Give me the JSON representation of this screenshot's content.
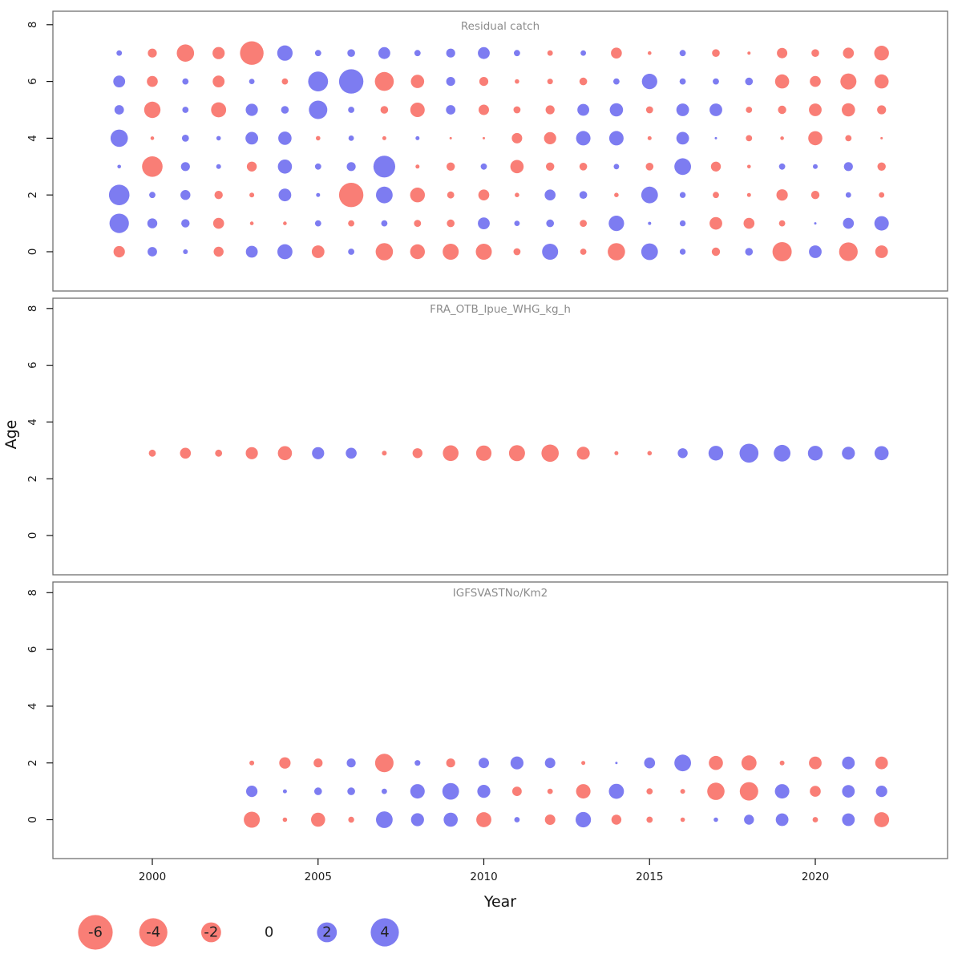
{
  "figure": {
    "xlabel": "Year",
    "ylabel": "Age",
    "x_ticks": [
      2000,
      2005,
      2010,
      2015,
      2020
    ],
    "y_ticks": [
      0,
      2,
      4,
      6,
      8
    ],
    "colors": {
      "negative_bubble": "#f97e76",
      "positive_bubble": "#7d7cf1",
      "frame": "#6f6f6f",
      "panel_title": "#8c8c8c",
      "tick_text": "#1a1a1a"
    },
    "legend": {
      "values": [
        -6,
        -4,
        -2,
        0,
        2,
        4
      ]
    }
  },
  "chart_data": [
    {
      "type": "bubble",
      "title": "Residual catch",
      "xlabel": "Year",
      "ylabel": "Age",
      "ylim": [
        -1,
        8.5
      ],
      "years": [
        1999,
        2000,
        2001,
        2002,
        2003,
        2004,
        2005,
        2006,
        2007,
        2008,
        2009,
        2010,
        2011,
        2012,
        2013,
        2014,
        2015,
        2016,
        2017,
        2018,
        2019,
        2020,
        2021,
        2022
      ],
      "rows": [
        {
          "age": 7,
          "values": [
            0.15,
            -0.4,
            -1.5,
            -0.75,
            -2.8,
            1.2,
            0.2,
            0.3,
            0.7,
            0.2,
            0.4,
            0.7,
            0.2,
            -0.15,
            0.15,
            -0.6,
            -0.07,
            0.2,
            -0.3,
            -0.05,
            -0.55,
            -0.3,
            -0.6,
            -1.1
          ]
        },
        {
          "age": 6,
          "values": [
            0.7,
            -0.6,
            0.2,
            -0.7,
            0.15,
            -0.2,
            2.0,
            3.0,
            -1.8,
            -0.9,
            0.4,
            -0.4,
            -0.1,
            -0.16,
            -0.3,
            0.2,
            1.2,
            0.2,
            0.2,
            0.3,
            -1.0,
            -0.6,
            -1.3,
            -1.0
          ]
        },
        {
          "age": 5,
          "values": [
            0.45,
            -1.35,
            0.2,
            -1.15,
            0.75,
            0.3,
            1.7,
            0.2,
            -0.3,
            -1.05,
            0.45,
            -0.55,
            -0.25,
            -0.4,
            0.7,
            0.9,
            -0.25,
            0.8,
            0.8,
            -0.2,
            -0.35,
            -0.8,
            -0.9,
            -0.4
          ]
        },
        {
          "age": 4,
          "values": [
            1.5,
            -0.07,
            0.25,
            0.1,
            0.8,
            0.9,
            -0.1,
            0.15,
            -0.08,
            0.08,
            -0.03,
            -0.03,
            -0.55,
            -0.75,
            1.05,
            1.05,
            -0.08,
            0.8,
            0.03,
            -0.2,
            -0.07,
            -1.0,
            -0.2,
            -0.03
          ]
        },
        {
          "age": 3,
          "values": [
            0.07,
            -2.1,
            0.4,
            0.12,
            -0.5,
            1.0,
            0.2,
            0.4,
            2.4,
            -0.08,
            -0.35,
            0.2,
            -0.9,
            -0.35,
            -0.3,
            0.15,
            -0.3,
            1.4,
            -0.5,
            -0.07,
            0.2,
            0.12,
            0.4,
            -0.35
          ]
        },
        {
          "age": 2,
          "values": [
            2.1,
            0.2,
            0.5,
            -0.35,
            -0.12,
            0.8,
            0.08,
            -3.0,
            1.4,
            -1.1,
            -0.25,
            -0.6,
            -0.1,
            0.6,
            0.3,
            -0.1,
            1.4,
            0.18,
            -0.2,
            -0.08,
            -0.65,
            -0.35,
            0.15,
            -0.15
          ]
        },
        {
          "age": 1,
          "values": [
            1.9,
            0.5,
            0.35,
            -0.6,
            -0.07,
            -0.07,
            0.2,
            -0.2,
            0.2,
            -0.25,
            -0.3,
            0.7,
            0.15,
            0.3,
            -0.25,
            1.2,
            0.05,
            0.18,
            -0.8,
            -0.6,
            -0.2,
            0.03,
            0.6,
            1.05
          ]
        },
        {
          "age": 0,
          "values": [
            -0.65,
            0.45,
            0.12,
            -0.5,
            0.7,
            1.15,
            -0.8,
            0.2,
            -1.5,
            -1.1,
            -1.3,
            -1.3,
            -0.25,
            1.3,
            -0.2,
            -1.5,
            1.4,
            0.18,
            -0.35,
            0.3,
            -1.85,
            0.8,
            -1.75,
            -0.8
          ]
        }
      ]
    },
    {
      "type": "bubble",
      "title": "FRA_OTB_lpue_WHG_kg_h",
      "xlabel": "Year",
      "ylabel": "Age",
      "ylim": [
        -1,
        8.5
      ],
      "years": [
        2000,
        2001,
        2002,
        2003,
        2004,
        2005,
        2006,
        2007,
        2008,
        2009,
        2010,
        2011,
        2012,
        2013,
        2014,
        2015,
        2016,
        2017,
        2018,
        2019,
        2020,
        2021,
        2022
      ],
      "rows": [
        {
          "age": 2.9,
          "values": [
            -0.25,
            -0.6,
            -0.25,
            -0.75,
            -1.0,
            0.75,
            0.6,
            -0.12,
            -0.5,
            -1.25,
            -1.2,
            -1.3,
            -1.5,
            -0.85,
            -0.08,
            -0.1,
            0.5,
            1.1,
            1.8,
            1.4,
            1.1,
            0.85,
            1.0
          ]
        }
      ]
    },
    {
      "type": "bubble",
      "title": "IGFSVASTNo/Km2",
      "xlabel": "Year",
      "ylabel": "Age",
      "ylim": [
        -1,
        8.5
      ],
      "years": [
        2003,
        2004,
        2005,
        2006,
        2007,
        2008,
        2009,
        2010,
        2011,
        2012,
        2013,
        2014,
        2015,
        2016,
        2017,
        2018,
        2019,
        2020,
        2021,
        2022
      ],
      "rows": [
        {
          "age": 2,
          "values": [
            -0.12,
            -0.65,
            -0.4,
            0.4,
            -1.7,
            0.17,
            -0.4,
            0.55,
            0.85,
            0.55,
            -0.08,
            0.03,
            0.6,
            1.4,
            -1.0,
            -1.15,
            -0.12,
            -0.8,
            0.8,
            -0.8
          ]
        },
        {
          "age": 1,
          "values": [
            0.65,
            0.08,
            0.3,
            0.3,
            0.15,
            1.05,
            1.4,
            0.85,
            -0.45,
            -0.15,
            -1.05,
            1.15,
            -0.2,
            -0.12,
            -1.5,
            -1.7,
            1.05,
            -0.6,
            0.8,
            0.65
          ]
        },
        {
          "age": 0,
          "values": [
            -1.3,
            -0.1,
            -1.0,
            -0.18,
            1.4,
            0.85,
            1.0,
            -1.15,
            0.15,
            -0.55,
            1.2,
            -0.5,
            -0.2,
            -0.1,
            0.1,
            0.5,
            0.8,
            -0.15,
            0.8,
            -1.15
          ]
        }
      ]
    }
  ]
}
